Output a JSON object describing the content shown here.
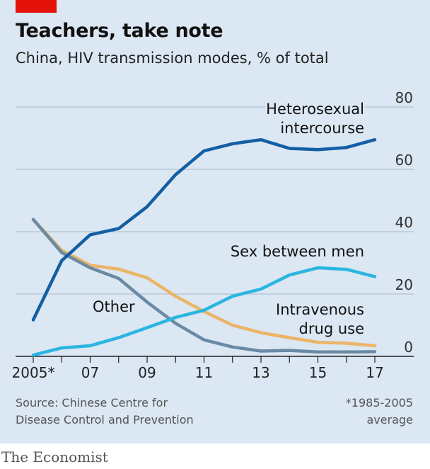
{
  "title": "Teachers, take note",
  "subtitle": "China, HIV transmission modes, % of total",
  "source": [
    "Source: Chinese Centre for",
    "Disease Control and Prevention"
  ],
  "footnote": [
    "*1985-2005",
    "average"
  ],
  "brand": "The Economist",
  "colors": {
    "accent": "#e3120b",
    "background": "#dbe7f3"
  },
  "chart_data": {
    "type": "line",
    "x": [
      2005,
      2006,
      2007,
      2008,
      2009,
      2010,
      2011,
      2012,
      2013,
      2014,
      2015,
      2016,
      2017
    ],
    "x_tick_labels": [
      {
        "x": 2005,
        "label": "2005*"
      },
      {
        "x": 2007,
        "label": "07"
      },
      {
        "x": 2009,
        "label": "09"
      },
      {
        "x": 2011,
        "label": "11"
      },
      {
        "x": 2013,
        "label": "13"
      },
      {
        "x": 2015,
        "label": "15"
      },
      {
        "x": 2017,
        "label": "17"
      }
    ],
    "y_ticks": [
      0,
      20,
      40,
      60,
      80
    ],
    "ylim": [
      0,
      80
    ],
    "grid": true,
    "series": [
      {
        "name": "Heterosexual intercourse",
        "label_lines": [
          "Heterosexual",
          "intercourse"
        ],
        "color": "#135ea4",
        "values": [
          11.7,
          30.7,
          39,
          41,
          48,
          58.3,
          65.9,
          68.2,
          69.5,
          66.7,
          66.3,
          67,
          69.5
        ]
      },
      {
        "name": "Sex between men",
        "label_lines": [
          "Sex between men"
        ],
        "color": "#2bb5e0",
        "values": [
          0.4,
          2.7,
          3.4,
          6,
          9.2,
          12.5,
          14.8,
          19.3,
          21.6,
          26.1,
          28.4,
          27.9,
          25.6
        ]
      },
      {
        "name": "Intravenous drug use",
        "label_lines": [
          "Intravenous",
          "drug use"
        ],
        "color": "#ebb568",
        "values": [
          43.9,
          34,
          29.2,
          28,
          25.2,
          19.3,
          14.4,
          10,
          7.6,
          6,
          4.5,
          4.2,
          3.4
        ]
      },
      {
        "name": "Other",
        "label_lines": [
          "Other"
        ],
        "color": "#6a8aa4",
        "values": [
          43.9,
          33.3,
          28.4,
          25,
          17.4,
          10.6,
          5.3,
          3,
          1.7,
          1.9,
          1.4,
          1.4,
          1.5
        ]
      }
    ]
  }
}
